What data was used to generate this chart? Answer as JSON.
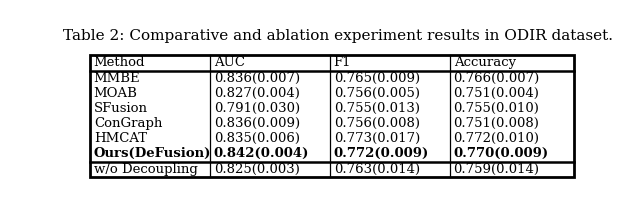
{
  "title": "Table 2: Comparative and ablation experiment results in ODIR dataset.",
  "columns": [
    "Method",
    "AUC",
    "F1",
    "Accuracy"
  ],
  "rows": [
    [
      "MMBE",
      "0.836(0.007)",
      "0.765(0.009)",
      "0.766(0.007)"
    ],
    [
      "MOAB",
      "0.827(0.004)",
      "0.756(0.005)",
      "0.751(0.004)"
    ],
    [
      "SFusion",
      "0.791(0.030)",
      "0.755(0.013)",
      "0.755(0.010)"
    ],
    [
      "ConGraph",
      "0.836(0.009)",
      "0.756(0.008)",
      "0.751(0.008)"
    ],
    [
      "HMCAT",
      "0.835(0.006)",
      "0.773(0.017)",
      "0.772(0.010)"
    ],
    [
      "Ours(DeFusion)",
      "0.842(0.004)",
      "0.772(0.009)",
      "0.770(0.009)"
    ],
    [
      "w/o Decoupling",
      "0.825(0.003)",
      "0.763(0.014)",
      "0.759(0.014)"
    ]
  ],
  "bold_row": 5,
  "fig_width": 6.4,
  "fig_height": 2.02,
  "title_fontsize": 11,
  "table_fontsize": 9.5
}
